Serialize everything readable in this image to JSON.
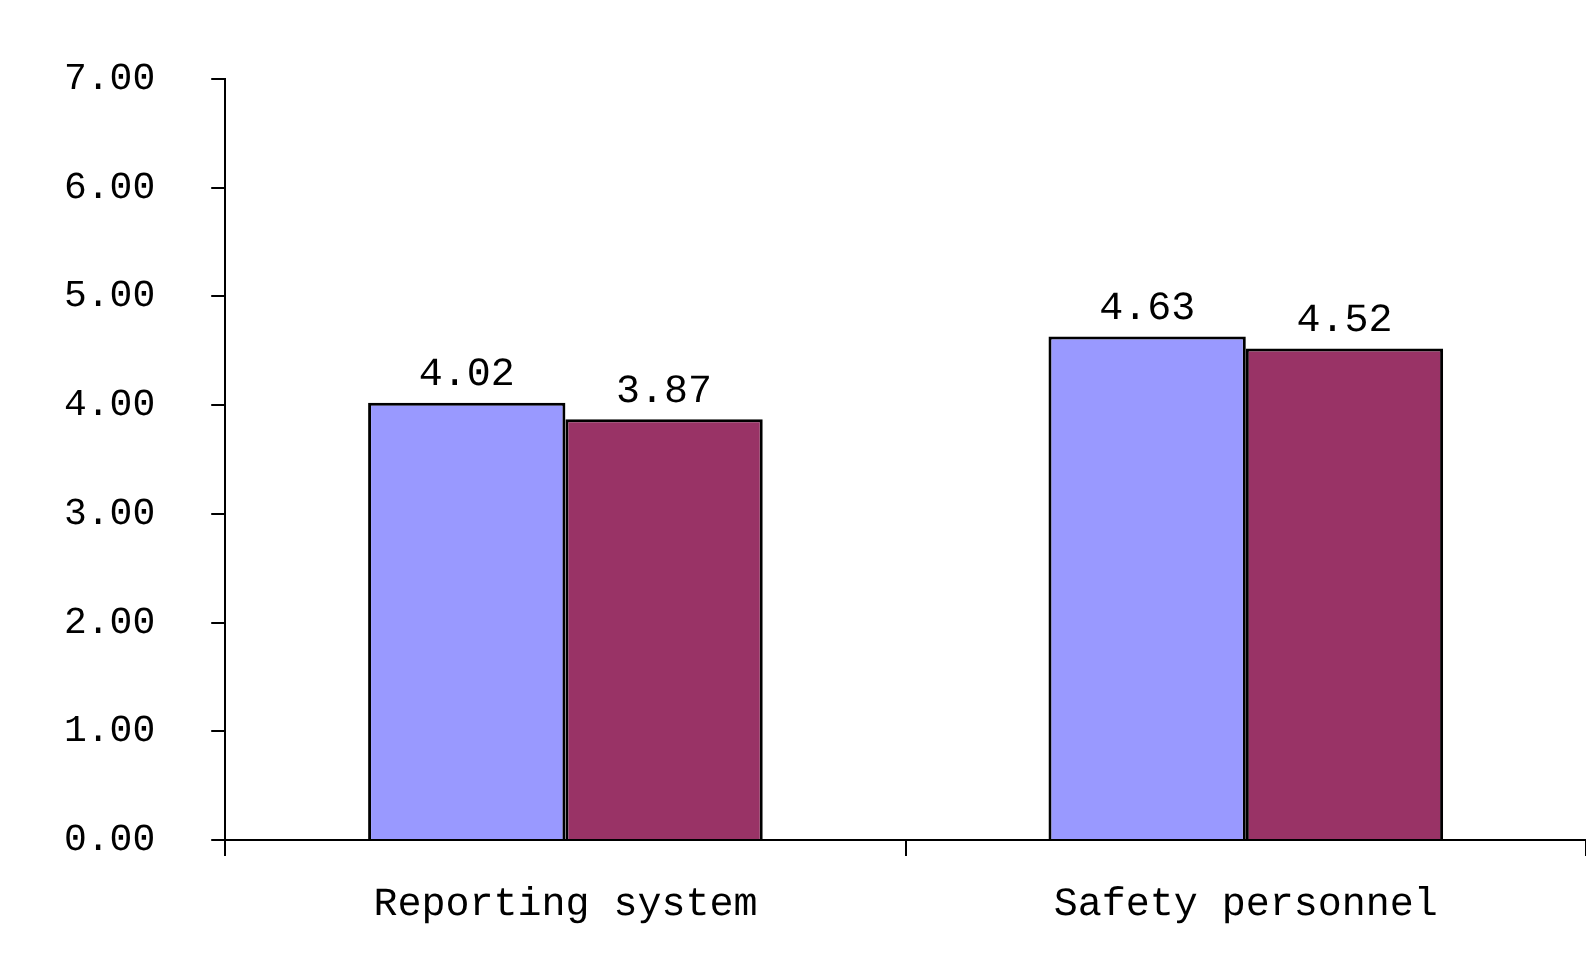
{
  "chart_data": {
    "type": "bar",
    "categories": [
      "Reporting system",
      "Safety personnel"
    ],
    "series": [
      {
        "color": "#9999ff",
        "values": [
          4.02,
          4.63
        ]
      },
      {
        "color": "#993366",
        "values": [
          3.87,
          4.52
        ]
      }
    ],
    "ylim": [
      0,
      7
    ],
    "yticks": [
      {
        "value": 0,
        "label": "0.00"
      },
      {
        "value": 1,
        "label": "1.00"
      },
      {
        "value": 2,
        "label": "2.00"
      },
      {
        "value": 3,
        "label": "3.00"
      },
      {
        "value": 4,
        "label": "4.00"
      },
      {
        "value": 5,
        "label": "5.00"
      },
      {
        "value": 6,
        "label": "6.00"
      },
      {
        "value": 7,
        "label": "7.00"
      }
    ],
    "grid": false,
    "legend": false,
    "data_labels": true
  }
}
